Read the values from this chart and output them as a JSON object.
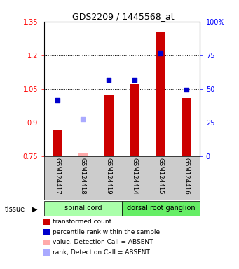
{
  "title": "GDS2209 / 1445568_at",
  "samples": [
    "GSM124417",
    "GSM124418",
    "GSM124419",
    "GSM124414",
    "GSM124415",
    "GSM124416"
  ],
  "tissue_groups": [
    {
      "label": "spinal cord",
      "indices": [
        0,
        1,
        2
      ],
      "color": "#aaffaa"
    },
    {
      "label": "dorsal root ganglion",
      "indices": [
        3,
        4,
        5
      ],
      "color": "#66ee66"
    }
  ],
  "bar_values": [
    0.865,
    null,
    1.02,
    1.07,
    1.305,
    1.01
  ],
  "bar_absent_values": [
    null,
    0.762,
    null,
    null,
    null,
    null
  ],
  "dot_values": [
    1.0,
    null,
    1.09,
    1.09,
    1.21,
    1.045
  ],
  "dot_absent_values": [
    null,
    0.915,
    null,
    null,
    null,
    null
  ],
  "ylim_left": [
    0.75,
    1.35
  ],
  "ylim_right": [
    0,
    100
  ],
  "yticks_left": [
    0.75,
    0.9,
    1.05,
    1.2,
    1.35
  ],
  "yticks_right": [
    0,
    25,
    50,
    75,
    100
  ],
  "ytick_labels_left": [
    "0.75",
    "0.9",
    "1.05",
    "1.2",
    "1.35"
  ],
  "ytick_labels_right": [
    "0",
    "25",
    "50",
    "75",
    "100%"
  ],
  "bar_color": "#cc0000",
  "bar_absent_color": "#ffaaaa",
  "dot_color": "#0000cc",
  "dot_absent_color": "#aaaaff",
  "bar_width": 0.38,
  "plot_bg": "#ffffff",
  "sample_area_bg": "#cccccc",
  "grid_color": "black",
  "grid_linestyle": ":",
  "grid_linewidth": 0.7,
  "legend_items": [
    {
      "color": "#cc0000",
      "label": "transformed count"
    },
    {
      "color": "#0000cc",
      "label": "percentile rank within the sample"
    },
    {
      "color": "#ffaaaa",
      "label": "value, Detection Call = ABSENT"
    },
    {
      "color": "#aaaaff",
      "label": "rank, Detection Call = ABSENT"
    }
  ]
}
